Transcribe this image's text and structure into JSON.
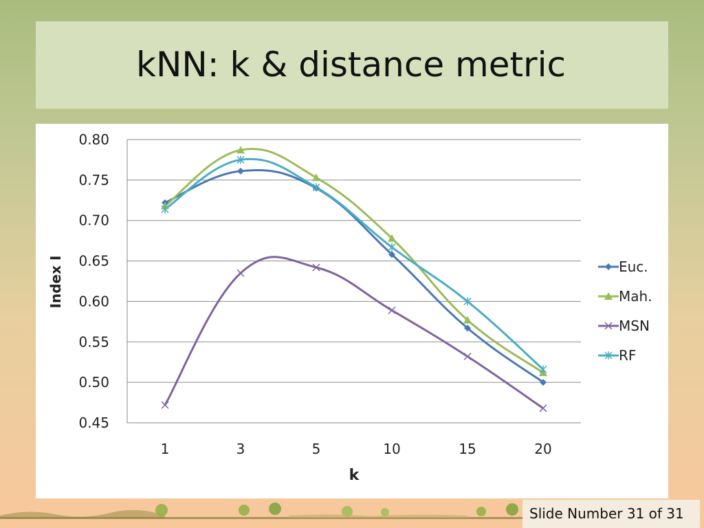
{
  "slide": {
    "title": "kNN: k & distance metric",
    "footer": "Slide Number 31 of 31"
  },
  "colors": {
    "euc": "#4a78b4",
    "mah": "#9bbb59",
    "msn": "#7f63a0",
    "rf": "#4bacc6"
  },
  "chart_data": {
    "type": "line",
    "categories": [
      "1",
      "3",
      "5",
      "10",
      "15",
      "20"
    ],
    "series": [
      {
        "name": "Euc.",
        "marker": "diamond",
        "color": "#4a78b4",
        "values": [
          0.722,
          0.761,
          0.74,
          0.658,
          0.567,
          0.5
        ]
      },
      {
        "name": "Mah.",
        "marker": "triangle",
        "color": "#9bbb59",
        "values": [
          0.718,
          0.787,
          0.753,
          0.678,
          0.577,
          0.512
        ]
      },
      {
        "name": "MSN",
        "marker": "x",
        "color": "#7f63a0",
        "values": [
          0.472,
          0.635,
          0.642,
          0.589,
          0.532,
          0.468
        ]
      },
      {
        "name": "RF",
        "marker": "star",
        "color": "#4bacc6",
        "values": [
          0.714,
          0.775,
          0.741,
          0.667,
          0.6,
          0.516
        ]
      }
    ],
    "xlabel": "k",
    "ylabel": "Index I",
    "ylim": [
      0.45,
      0.8
    ],
    "yticks": [
      "0.80",
      "0.75",
      "0.70",
      "0.65",
      "0.60",
      "0.55",
      "0.50",
      "0.45"
    ],
    "grid": true,
    "smoothed": true,
    "legend": "right"
  }
}
